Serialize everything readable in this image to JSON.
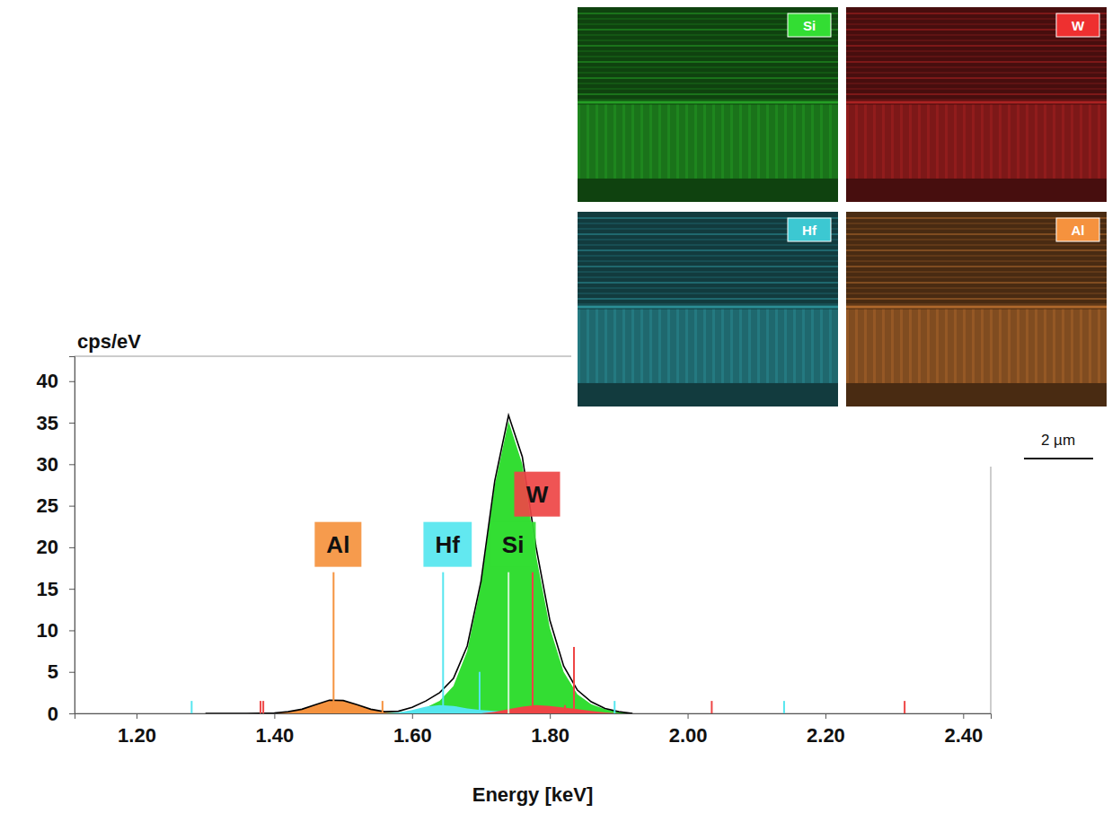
{
  "chart_data": {
    "type": "area",
    "x_label": "Energy [keV]",
    "y_label": "cps/eV",
    "xlim": [
      1.11,
      2.44
    ],
    "ylim": [
      0,
      43
    ],
    "xticks": [
      {
        "value": 1.2,
        "label": "1.20"
      },
      {
        "value": 1.4,
        "label": "1.40"
      },
      {
        "value": 1.6,
        "label": "1.60"
      },
      {
        "value": 1.8,
        "label": "1.80"
      },
      {
        "value": 2.0,
        "label": "2.00"
      },
      {
        "value": 2.2,
        "label": "2.20"
      },
      {
        "value": 2.4,
        "label": "2.40"
      }
    ],
    "yticks": [
      0,
      5,
      10,
      15,
      20,
      25,
      30,
      35,
      40
    ],
    "grid": false,
    "x": [
      1.3,
      1.32,
      1.34,
      1.36,
      1.38,
      1.4,
      1.42,
      1.44,
      1.46,
      1.48,
      1.5,
      1.52,
      1.54,
      1.56,
      1.58,
      1.6,
      1.62,
      1.64,
      1.66,
      1.68,
      1.7,
      1.72,
      1.74,
      1.76,
      1.78,
      1.8,
      1.82,
      1.84,
      1.86,
      1.88,
      1.9,
      1.92
    ],
    "values": [
      0,
      0,
      0,
      0,
      0.02,
      0.06,
      0.2,
      0.5,
      1.05,
      1.6,
      1.55,
      1.05,
      0.5,
      0.2,
      0.26,
      0.72,
      1.5,
      2.5,
      4.2,
      8.1,
      15.9,
      28.0,
      35.9,
      30.9,
      20,
      11.2,
      5.7,
      2.8,
      1.4,
      0.6,
      0.2,
      0
    ],
    "color": "#000000",
    "series": [
      {
        "name": "Al",
        "color": "#f5923e",
        "values": [
          0,
          0,
          0,
          0,
          0.02,
          0.06,
          0.2,
          0.5,
          1.05,
          1.6,
          1.55,
          1.05,
          0.5,
          0.2,
          0.06,
          0.02,
          0,
          0,
          0,
          0,
          0,
          0,
          0,
          0,
          0,
          0,
          0,
          0,
          0,
          0,
          0,
          0
        ],
        "line_energies": [
          1.486,
          1.557
        ],
        "line_heights": [
          17,
          1.5
        ]
      },
      {
        "name": "Hf",
        "color": "#55e6ef",
        "values": [
          0,
          0,
          0,
          0,
          0,
          0,
          0,
          0,
          0,
          0,
          0,
          0,
          0,
          0,
          0.1,
          0.4,
          0.8,
          1.0,
          0.9,
          0.6,
          0.4,
          0.3,
          0.2,
          0.1,
          0,
          0,
          0,
          0,
          0,
          0,
          0,
          0
        ],
        "line_energies": [
          1.28,
          1.645,
          1.698,
          1.894,
          2.14
        ],
        "line_heights": [
          1.5,
          17,
          5,
          1.5,
          1.5
        ]
      },
      {
        "name": "Si",
        "color": "#33dd33",
        "values": [
          0,
          0,
          0,
          0,
          0,
          0,
          0,
          0,
          0,
          0,
          0,
          0,
          0,
          0,
          0.1,
          0.3,
          0.7,
          1.5,
          3.3,
          7.5,
          15.5,
          27.5,
          35.2,
          30,
          19,
          10.3,
          5,
          2.3,
          1.1,
          0.5,
          0.2,
          0
        ],
        "line_energies": [
          1.74
        ],
        "line_heights": [
          17
        ]
      },
      {
        "name": "W",
        "color": "#ee4545",
        "values": [
          0,
          0,
          0,
          0,
          0,
          0,
          0,
          0,
          0,
          0,
          0,
          0,
          0,
          0,
          0,
          0,
          0,
          0,
          0,
          0,
          0,
          0.2,
          0.5,
          0.8,
          1.0,
          0.9,
          0.7,
          0.5,
          0.3,
          0.1,
          0,
          0
        ],
        "line_energies": [
          1.38,
          1.384,
          1.775,
          1.822,
          1.835,
          2.035,
          2.315
        ],
        "line_heights": [
          1.5,
          1.5,
          17,
          1,
          8,
          1.5,
          1.5
        ]
      }
    ],
    "maps": [
      {
        "label": "Si",
        "color": "#33dd33"
      },
      {
        "label": "W",
        "color": "#ee3030"
      },
      {
        "label": "Hf",
        "color": "#3cc8d2"
      },
      {
        "label": "Al",
        "color": "#f5923e"
      }
    ],
    "scale_bar": "2 µm"
  }
}
